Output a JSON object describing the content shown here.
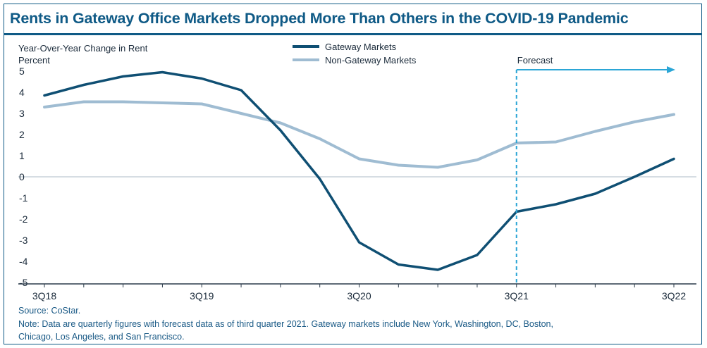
{
  "title": "Rents in Gateway Office Markets Dropped More Than Others in the COVID-19 Pandemic",
  "source": "Source: CoStar.",
  "note_line1": "Note: Data are quarterly figures with forecast data as of third quarter 2021. Gateway markets include New York, Washington, DC, Boston,",
  "note_line2": "Chicago, Los Angeles, and San Francisco.",
  "colors": {
    "title": "#0f5a86",
    "gateway": "#0f4f73",
    "non_gateway": "#9fbcd2",
    "forecast": "#2ba6d6",
    "zero_line": "#d6dde3",
    "axis": "#2a3a4a"
  },
  "chart_data": {
    "type": "line",
    "ylabel_line1": "Year-Over-Year Change in Rent",
    "ylabel_line2": "Percent",
    "ylim": [
      -5,
      5
    ],
    "yticks": [
      5,
      4,
      3,
      2,
      1,
      0,
      -1,
      -2,
      -3,
      -4,
      -5
    ],
    "x": [
      "3Q18",
      "4Q18",
      "1Q19",
      "2Q19",
      "3Q19",
      "4Q19",
      "1Q20",
      "2Q20",
      "3Q20",
      "4Q20",
      "1Q21",
      "2Q21",
      "3Q21",
      "4Q21",
      "1Q22",
      "2Q22",
      "3Q22"
    ],
    "xtick_labels": [
      "3Q18",
      "3Q19",
      "3Q20",
      "3Q21",
      "3Q22"
    ],
    "legend_position": "top-center",
    "grid": false,
    "series": [
      {
        "name": "Gateway Markets",
        "values": [
          3.85,
          4.35,
          4.75,
          4.95,
          4.65,
          4.1,
          2.2,
          -0.1,
          -3.1,
          -4.15,
          -4.4,
          -3.7,
          -1.65,
          -1.3,
          -0.8,
          0.0,
          0.85
        ]
      },
      {
        "name": "Non-Gateway Markets",
        "values": [
          3.3,
          3.55,
          3.55,
          3.5,
          3.45,
          3.0,
          2.55,
          1.8,
          0.85,
          0.55,
          0.45,
          0.8,
          1.6,
          1.65,
          2.15,
          2.6,
          2.95
        ]
      }
    ],
    "forecast_start": "3Q21",
    "forecast_label": "Forecast"
  }
}
